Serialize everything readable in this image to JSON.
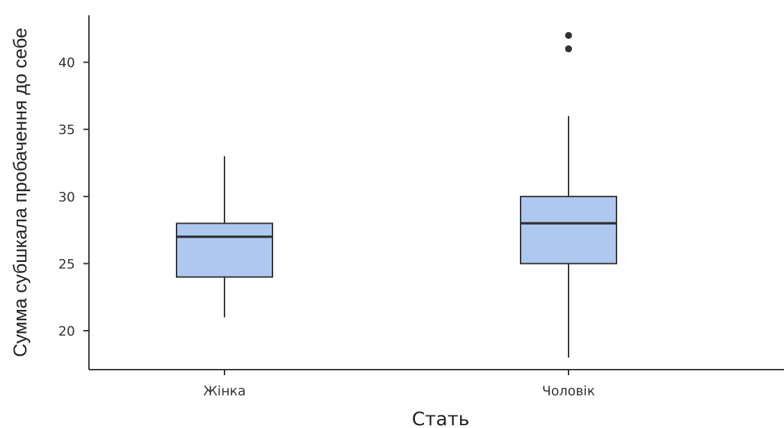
{
  "chart_data": {
    "type": "boxplot",
    "title": "",
    "xlabel": "Стать",
    "ylabel": "Сумма субшкала пробачення до себе",
    "categories": [
      "Жінка",
      "Чоловік"
    ],
    "ylim": [
      17.1,
      43.5
    ],
    "yticks": [
      20,
      25,
      30,
      35,
      40
    ],
    "grid": false,
    "legend": "none",
    "colors": {
      "box_fill": "#aec8f0",
      "box_stroke": "#333333",
      "axis": "#333333",
      "outlier": "#333333"
    },
    "boxes": [
      {
        "category": "Жінка",
        "whisker_low": 21,
        "q1": 24,
        "median": 27,
        "q3": 28,
        "whisker_high": 33,
        "outliers": []
      },
      {
        "category": "Чоловік",
        "whisker_low": 18,
        "q1": 25,
        "median": 28,
        "q3": 30,
        "whisker_high": 36,
        "outliers": [
          41,
          42
        ]
      }
    ]
  }
}
